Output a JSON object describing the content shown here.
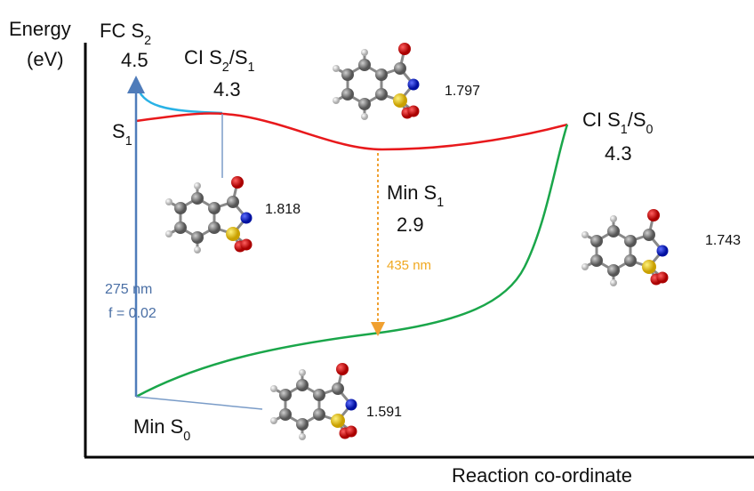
{
  "axes": {
    "y_label": [
      "Energy",
      "(eV)"
    ],
    "x_label": "Reaction co-ordinate"
  },
  "states": [
    {
      "name": [
        {
          "text": "FC S"
        },
        {
          "text": "2",
          "sub": true
        }
      ],
      "energy": "4.5"
    },
    {
      "name": [
        {
          "text": "CI S"
        },
        {
          "text": "2",
          "sub": true
        },
        {
          "text": "/S"
        },
        {
          "text": "1",
          "sub": true
        }
      ],
      "energy": "4.3"
    },
    {
      "name": [
        {
          "text": "Min S"
        },
        {
          "text": "1",
          "sub": true
        }
      ],
      "energy": "2.9"
    },
    {
      "name": [
        {
          "text": "CI S"
        },
        {
          "text": "1",
          "sub": true
        },
        {
          "text": "/S"
        },
        {
          "text": "0",
          "sub": true
        }
      ],
      "energy": "4.3"
    },
    {
      "name": [
        {
          "text": "Min S"
        },
        {
          "text": "0",
          "sub": true
        }
      ]
    }
  ],
  "curve_label": [
    {
      "text": "S"
    },
    {
      "text": "1",
      "sub": true
    }
  ],
  "absorption": [
    "275 nm",
    "f = 0.02"
  ],
  "emission": "435 nm",
  "bond_lengths": [
    "1.818",
    "1.797",
    "1.743",
    "1.591"
  ]
}
